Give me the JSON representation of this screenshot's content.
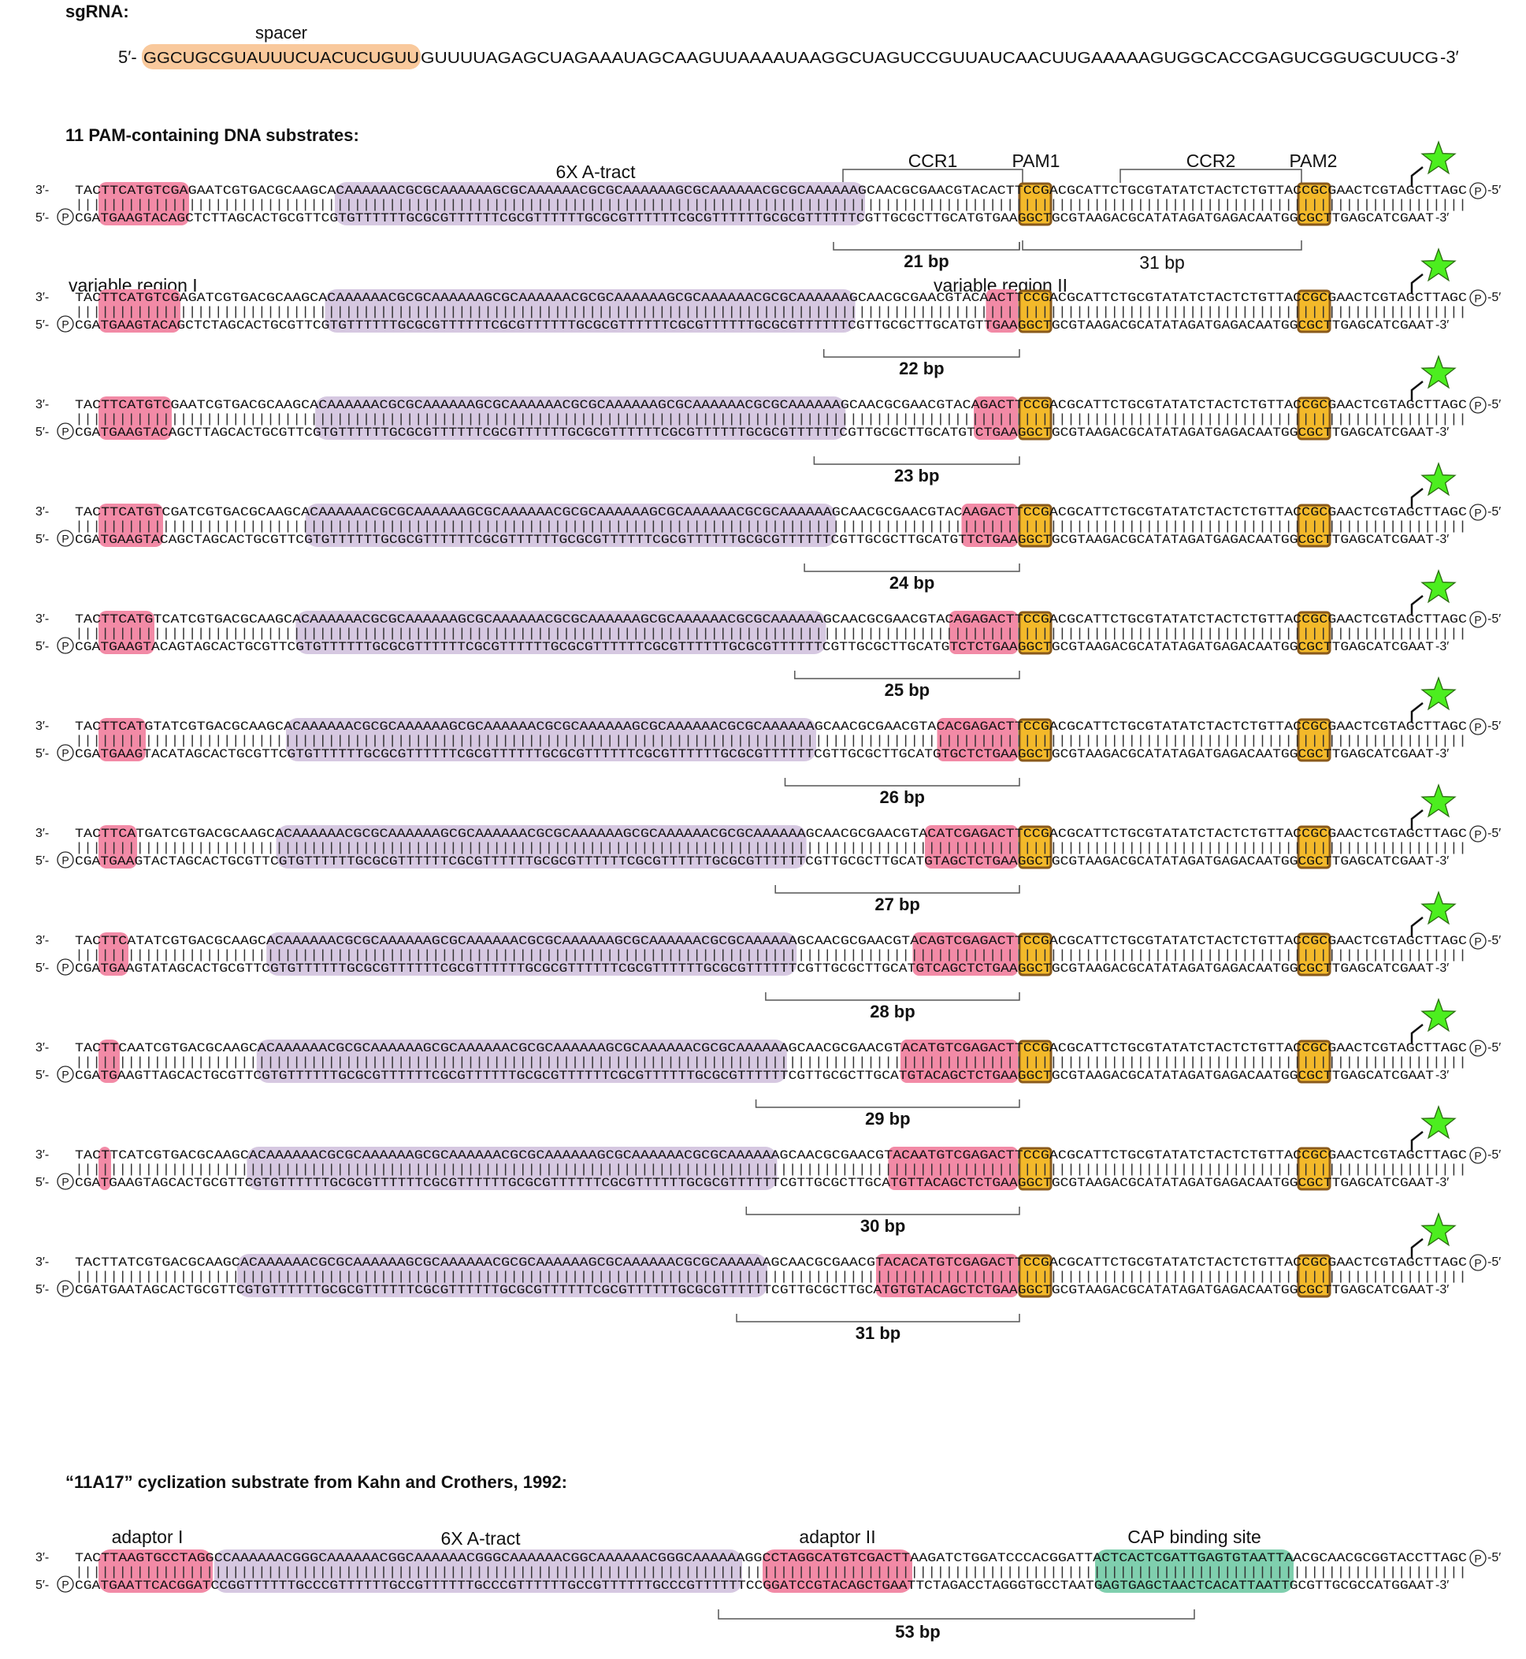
{
  "colors": {
    "spacer_fill": "#f9c99c",
    "atract_fill": "#d6c8e1",
    "variable_fill": "#f28aa6",
    "pam_fill": "#f3b92a",
    "pam_stroke": "#8a5a1c",
    "cap_fill": "#7fcfae",
    "star_fill": "#4cee1f",
    "bracket": "#555555",
    "text": "#111111"
  },
  "sgrna": {
    "heading": "sgRNA:",
    "spacer_label": "spacer",
    "prefix": "5′-",
    "spacer_seq": "GGCUGCGUAUUUCUACUCUGUU",
    "rest_seq": "GUUUUAGAGCUAGAAAUAGCAAGUUAAAAUAAGGCUAGUCCGUUAUCAACUUGAAAAAGUGGCACCGAGUCGGUGCUUCG",
    "suffix": "-3′"
  },
  "substrates_section": {
    "heading": "11 PAM-containing DNA substrates:",
    "label_atract": "6X A-tract",
    "label_ccr1": "CCR1",
    "label_pam1": "PAM1",
    "label_ccr2": "CCR2",
    "label_pam2": "PAM2",
    "label_var1": "variable region I",
    "label_var2": "variable region II",
    "label_31bp": "31 bp",
    "rows": [
      {
        "bp_label": "21 bp",
        "top": "TACTTCATGTCGAGAATCGTGACGCAAGCACAAAAAACGCGCAAAAAAGCGCAAAAAACGCGCAAAAAAGCGCAAAAAACGCGCAAAAAAGCAACGCGAACGTACACTTCCGACGCATTCTGCGTATATCTACTCTGTTACCGCGAACTCGTAGCTTAGC",
        "bottom": "CGATGAAGTACAGCTCTTAGCACTGCGTTCGTGTTTTTTGCGCGTTTTTTCGCGTTTTTTGCGCGTTTTTTCGCGTTTTTTGCGCGTTTTTTCGTTGCGCTTGCATGTGAAGGCTGCGTAAGACGCATATAGATGAGACAATGGCGCTTGAGCATCGAAT"
      },
      {
        "bp_label": "22 bp",
        "top": "TACTTCATGTCGAGATCGTGACGCAAGCACAAAAAACGCGCAAAAAAGCGCAAAAAACGCGCAAAAAAGCGCAAAAAACGCGCAAAAAAGCAACGCGAACGTACAACTTCCGACGCATTCTGCGTATATCTACTCTGTTACCGCGAACTCGTAGCTTAGC",
        "bottom": "CGATGAAGTACAGCTCTAGCACTGCGTTCGTGTTTTTTGCGCGTTTTTTCGCGTTTTTTGCGCGTTTTTTCGCGTTTTTTGCGCGTTTTTTCGTTGCGCTTGCATGTTGAAGGCTGCGTAAGACGCATATAGATGAGACAATGGCGCTTGAGCATCGAAT"
      },
      {
        "bp_label": "23 bp",
        "top": "TACTTCATGTCGAATCGTGACGCAAGCACAAAAAACGCGCAAAAAAGCGCAAAAAACGCGCAAAAAAGCGCAAAAAACGCGCAAAAAAGCAACGCGAACGTACAGACTTCCGACGCATTCTGCGTATATCTACTCTGTTACCGCGAACTCGTAGCTTAGC",
        "bottom": "CGATGAAGTACAGCTTAGCACTGCGTTCGTGTTTTTTGCGCGTTTTTTCGCGTTTTTTGCGCGTTTTTTCGCGTTTTTTGCGCGTTTTTTCGTTGCGCTTGCATGTCTGAAGGCTGCGTAAGACGCATATAGATGAGACAATGGCGCTTGAGCATCGAAT"
      },
      {
        "bp_label": "24 bp",
        "top": "TACTTCATGTCGATCGTGACGCAAGCACAAAAAACGCGCAAAAAAGCGCAAAAAACGCGCAAAAAAGCGCAAAAAACGCGCAAAAAAGCAACGCGAACGTACAAGACTTCCGACGCATTCTGCGTATATCTACTCTGTTACCGCGAACTCGTAGCTTAGC",
        "bottom": "CGATGAAGTACAGCTAGCACTGCGTTCGTGTTTTTTGCGCGTTTTTTCGCGTTTTTTGCGCGTTTTTTCGCGTTTTTTGCGCGTTTTTTCGTTGCGCTTGCATGTTCTGAAGGCTGCGTAAGACGCATATAGATGAGACAATGGCGCTTGAGCATCGAAT"
      },
      {
        "bp_label": "25 bp",
        "top": "TACTTCATGTCATCGTGACGCAAGCACAAAAAACGCGCAAAAAAGCGCAAAAAACGCGCAAAAAAGCGCAAAAAACGCGCAAAAAAGCAACGCGAACGTACAGAGACTTCCGACGCATTCTGCGTATATCTACTCTGTTACCGCGAACTCGTAGCTTAGC",
        "bottom": "CGATGAAGTACAGTAGCACTGCGTTCGTGTTTTTTGCGCGTTTTTTCGCGTTTTTTGCGCGTTTTTTCGCGTTTTTTGCGCGTTTTTTCGTTGCGCTTGCATGTCTCTGAAGGCTGCGTAAGACGCATATAGATGAGACAATGGCGCTTGAGCATCGAAT"
      },
      {
        "bp_label": "26 bp",
        "top": "TACTTCATGTATCGTGACGCAAGCACAAAAAACGCGCAAAAAAGCGCAAAAAACGCGCAAAAAAGCGCAAAAAACGCGCAAAAAAGCAACGCGAACGTACACGAGACTTCCGACGCATTCTGCGTATATCTACTCTGTTACCGCGAACTCGTAGCTTAGC",
        "bottom": "CGATGAAGTACATAGCACTGCGTTCGTGTTTTTTGCGCGTTTTTTCGCGTTTTTTGCGCGTTTTTTCGCGTTTTTTGCGCGTTTTTTCGTTGCGCTTGCATGTGCTCTGAAGGCTGCGTAAGACGCATATAGATGAGACAATGGCGCTTGAGCATCGAAT"
      },
      {
        "bp_label": "27 bp",
        "top": "TACTTCATGATCGTGACGCAAGCACAAAAAACGCGCAAAAAAGCGCAAAAAACGCGCAAAAAAGCGCAAAAAACGCGCAAAAAAGCAACGCGAACGTACATCGAGACTTCCGACGCATTCTGCGTATATCTACTCTGTTACCGCGAACTCGTAGCTTAGC",
        "bottom": "CGATGAAGTACTAGCACTGCGTTCGTGTTTTTTGCGCGTTTTTTCGCGTTTTTTGCGCGTTTTTTCGCGTTTTTTGCGCGTTTTTTCGTTGCGCTTGCATGTAGCTCTGAAGGCTGCGTAAGACGCATATAGATGAGACAATGGCGCTTGAGCATCGAAT"
      },
      {
        "bp_label": "28 bp",
        "top": "TACTTCATATCGTGACGCAAGCACAAAAAACGCGCAAAAAAGCGCAAAAAACGCGCAAAAAAGCGCAAAAAACGCGCAAAAAAGCAACGCGAACGTACAGTCGAGACTTCCGACGCATTCTGCGTATATCTACTCTGTTACCGCGAACTCGTAGCTTAGC",
        "bottom": "CGATGAAGTATAGCACTGCGTTCGTGTTTTTTGCGCGTTTTTTCGCGTTTTTTGCGCGTTTTTTCGCGTTTTTTGCGCGTTTTTTCGTTGCGCTTGCATGTCAGCTCTGAAGGCTGCGTAAGACGCATATAGATGAGACAATGGCGCTTGAGCATCGAAT"
      },
      {
        "bp_label": "29 bp",
        "top": "TACTTCAATCGTGACGCAAGCACAAAAAACGCGCAAAAAAGCGCAAAAAACGCGCAAAAAAGCGCAAAAAACGCGCAAAAAAGCAACGCGAACGTACATGTCGAGACTTCCGACGCATTCTGCGTATATCTACTCTGTTACCGCGAACTCGTAGCTTAGC",
        "bottom": "CGATGAAGTTAGCACTGCGTTCGTGTTTTTTGCGCGTTTTTTCGCGTTTTTTGCGCGTTTTTTCGCGTTTTTTGCGCGTTTTTTCGTTGCGCTTGCATGTACAGCTCTGAAGGCTGCGTAAGACGCATATAGATGAGACAATGGCGCTTGAGCATCGAAT"
      },
      {
        "bp_label": "30 bp",
        "top": "TACTTCATCGTGACGCAAGCACAAAAAACGCGCAAAAAAGCGCAAAAAACGCGCAAAAAAGCGCAAAAAACGCGCAAAAAAGCAACGCGAACGTACAATGTCGAGACTTCCGACGCATTCTGCGTATATCTACTCTGTTACCGCGAACTCGTAGCTTAGC",
        "bottom": "CGATGAAGTAGCACTGCGTTCGTGTTTTTTGCGCGTTTTTTCGCGTTTTTTGCGCGTTTTTTCGCGTTTTTTGCGCGTTTTTTCGTTGCGCTTGCATGTTACAGCTCTGAAGGCTGCGTAAGACGCATATAGATGAGACAATGGCGCTTGAGCATCGAAT"
      },
      {
        "bp_label": "31 bp",
        "top": "TACTTATCGTGACGCAAGCACAAAAAACGCGCAAAAAAGCGCAAAAAACGCGCAAAAAAGCGCAAAAAACGCGCAAAAAAGCAACGCGAACGTACACATGTCGAGACTTCCGACGCATTCTGCGTATATCTACTCTGTTACCGCGAACTCGTAGCTTAGC",
        "bottom": "CGATGAATAGCACTGCGTTCGTGTTTTTTGCGCGTTTTTTCGCGTTTTTTGCGCGTTTTTTCGCGTTTTTTGCGCGTTTTTTCGTTGCGCTTGCATGTGTACAGCTCTGAAGGCTGCGTAAGACGCATATAGATGAGACAATGGCGCTTGAGCATCGAAT"
      }
    ]
  },
  "kahn_section": {
    "heading": "“11A17” cyclization substrate from Kahn and Crothers, 1992:",
    "label_adaptor1": "adaptor I",
    "label_atract": "6X A-tract",
    "label_adaptor2": "adaptor II",
    "label_cap": "CAP binding site",
    "bp_label": "53 bp",
    "top": "TACTTAAGTGCCTAGGCCAAAAAACGGGCAAAAAACGGCAAAAAACGGGCAAAAAACGGCAAAAAACGGGCAAAAAAGGCCTAGGCATGTCGACTTAAGATCTGGATCCCACGGATTACTCACTCGATTGAGTGTAATTAACGCAACGCGGTACCTTAGC",
    "bottom": "CGATGAATTCACGGATCCGGTTTTTTGCCCGTTTTTTGCCGTTTTTTGCCCGTTTTTTGCCGTTTTTTGCCCGTTTTTTCCGGATCCGTACAGCTGAATTCTAGACCTAGGGTGCCTAATGAGTGAGCTAACTCACATTAATTGCGTTGCGCCATGGAAT"
  },
  "strand_ends": {
    "top_left": "3′-",
    "bottom_left": "5′-",
    "top_right": "-5′",
    "bottom_right": "-3′",
    "phosphate": "P"
  }
}
